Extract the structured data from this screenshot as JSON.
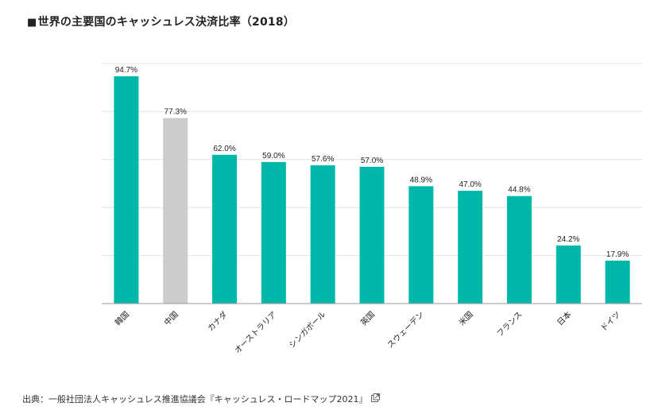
{
  "title": {
    "marker": "■",
    "text": "世界の主要国のキャッシュレス決済比率（2018）"
  },
  "source": {
    "text": "出典：一般社団法人キャッシュレス推進協議会『キャッシュレス・ロードマップ2021』",
    "icon": "external-link-icon"
  },
  "colors": {
    "teal": "#00b8a9",
    "gray": "#cccccc",
    "grid": "#e4e4e4",
    "axis": "#999999"
  },
  "chart_data": {
    "type": "bar",
    "categories": [
      "韓国",
      "中国",
      "カナダ",
      "オーストラリア",
      "シンガポール",
      "英国",
      "スウェーデン",
      "米国",
      "フランス",
      "日本",
      "ドイツ"
    ],
    "values": [
      94.7,
      77.3,
      62.0,
      59.0,
      57.6,
      57.0,
      48.9,
      47.0,
      44.8,
      24.2,
      17.9
    ],
    "value_labels": [
      "94.7%",
      "77.3%",
      "62.0%",
      "59.0%",
      "57.6%",
      "57.0%",
      "48.9%",
      "47.0%",
      "44.8%",
      "24.2%",
      "17.9%"
    ],
    "bar_colors": [
      "#00b8a9",
      "#cccccc",
      "#00b8a9",
      "#00b8a9",
      "#00b8a9",
      "#00b8a9",
      "#00b8a9",
      "#00b8a9",
      "#00b8a9",
      "#00b8a9",
      "#00b8a9"
    ],
    "ylim": [
      0,
      100
    ],
    "grid": true,
    "xlabel": "",
    "ylabel": ""
  }
}
